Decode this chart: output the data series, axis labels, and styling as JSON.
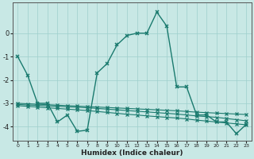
{
  "xlabel": "Humidex (Indice chaleur)",
  "x": [
    0,
    1,
    2,
    3,
    4,
    5,
    6,
    7,
    8,
    9,
    10,
    11,
    12,
    13,
    14,
    15,
    16,
    17,
    18,
    19,
    20,
    21,
    22,
    23
  ],
  "line1": [
    -1.0,
    -1.8,
    -3.0,
    -3.0,
    -3.8,
    -3.5,
    -4.2,
    -4.15,
    -1.7,
    -1.3,
    -0.5,
    -0.1,
    0.0,
    0.0,
    0.9,
    0.3,
    -2.3,
    -2.3,
    -3.5,
    -3.5,
    -3.8,
    -3.8,
    -4.3,
    -3.9
  ],
  "line2": [
    -3.0,
    -3.02,
    -3.04,
    -3.06,
    -3.08,
    -3.1,
    -3.12,
    -3.14,
    -3.16,
    -3.18,
    -3.2,
    -3.22,
    -3.24,
    -3.26,
    -3.28,
    -3.3,
    -3.32,
    -3.35,
    -3.38,
    -3.4,
    -3.42,
    -3.44,
    -3.46,
    -3.48
  ],
  "line3": [
    -3.05,
    -3.07,
    -3.09,
    -3.11,
    -3.13,
    -3.15,
    -3.17,
    -3.19,
    -3.22,
    -3.25,
    -3.28,
    -3.31,
    -3.34,
    -3.37,
    -3.4,
    -3.43,
    -3.46,
    -3.5,
    -3.54,
    -3.57,
    -3.6,
    -3.65,
    -3.7,
    -3.75
  ],
  "line4": [
    -3.1,
    -3.13,
    -3.16,
    -3.19,
    -3.22,
    -3.25,
    -3.28,
    -3.31,
    -3.35,
    -3.39,
    -3.43,
    -3.47,
    -3.5,
    -3.54,
    -3.57,
    -3.6,
    -3.63,
    -3.67,
    -3.72,
    -3.76,
    -3.8,
    -3.84,
    -3.88,
    -3.92
  ],
  "ylim_bottom": -4.6,
  "ylim_top": 1.3,
  "yticks": [
    0,
    -1,
    -2,
    -3,
    -4
  ],
  "xticks": [
    0,
    1,
    2,
    3,
    4,
    5,
    6,
    7,
    8,
    9,
    10,
    11,
    12,
    13,
    14,
    15,
    16,
    17,
    18,
    19,
    20,
    21,
    22,
    23
  ],
  "line_color": "#1a7a6e",
  "bg_color": "#c8e8e5",
  "grid_color": "#9ecfcc"
}
